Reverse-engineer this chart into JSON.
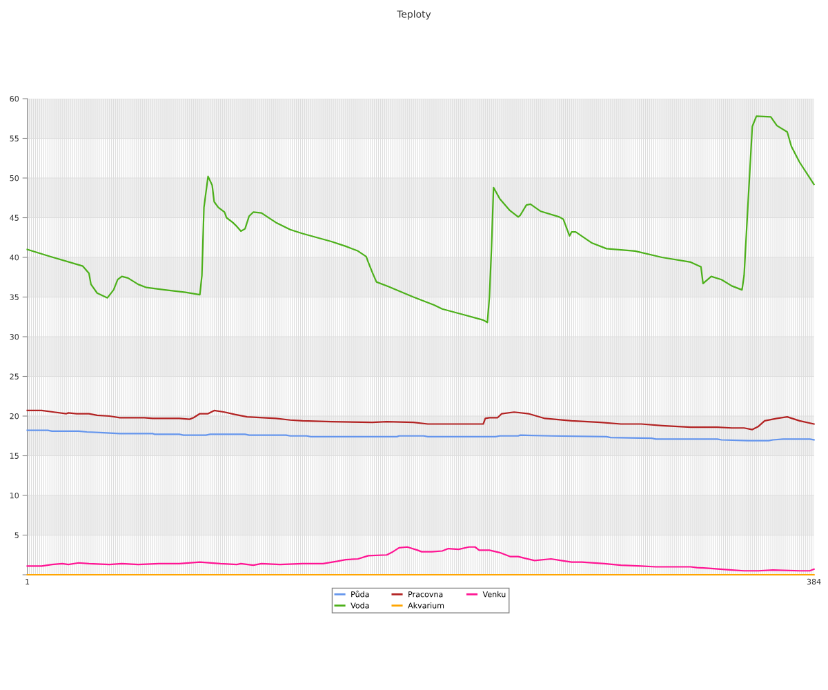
{
  "chart_data": {
    "type": "line",
    "title": "Teploty",
    "xlim": [
      1,
      384
    ],
    "xticks": [
      1,
      {
        "value": 2,
        "label": null
      },
      {
        "value": 3,
        "label": null
      },
      {
        "value": 4,
        "label": null
      },
      {
        "value": 5,
        "label": null
      },
      {
        "value": 6,
        "label": null
      },
      {
        "value": 7,
        "label": null
      },
      {
        "value": 8,
        "label": null
      },
      {
        "value": 9,
        "label": null
      },
      {
        "value": 10,
        "label": null
      },
      {
        "value": 11,
        "label": null
      },
      {
        "value": 12,
        "label": null
      },
      {
        "value": 13,
        "label": null
      },
      {
        "value": 14,
        "label": null
      },
      {
        "value": 15,
        "label": null
      },
      {
        "value": 16,
        "label": null
      },
      {
        "value": 17,
        "label": null
      },
      {
        "value": 18,
        "label": null
      },
      {
        "value": 19,
        "label": null
      },
      {
        "value": 20,
        "label": null
      },
      {
        "value": 21,
        "label": null
      },
      {
        "value": 22,
        "label": null
      },
      {
        "value": 23,
        "label": null
      },
      {
        "value": 24,
        "label": null
      },
      {
        "value": 25,
        "label": null
      },
      {
        "value": 26,
        "label": null
      },
      {
        "value": 27,
        "label": null
      },
      {
        "value": 28,
        "label": null
      },
      {
        "value": 29,
        "label": null
      },
      {
        "value": 30,
        "label": null
      },
      {
        "value": 31,
        "label": null
      },
      {
        "value": 32,
        "label": null
      },
      {
        "value": 33,
        "label": null
      },
      {
        "value": 34,
        "label": null
      },
      {
        "value": 35,
        "label": null
      },
      {
        "value": 36,
        "label": null
      },
      {
        "value": 37,
        "label": null
      },
      {
        "value": 38,
        "label": null
      },
      {
        "value": 39,
        "label": null
      },
      {
        "value": 40,
        "label": null
      },
      {
        "value": 41,
        "label": null
      },
      {
        "value": 42,
        "label": null
      },
      {
        "value": 43,
        "label": null
      },
      {
        "value": 44,
        "label": null
      },
      {
        "value": 45,
        "label": null
      },
      {
        "value": 46,
        "label": null
      },
      {
        "value": 47,
        "label": null
      },
      {
        "value": 48,
        "label": null
      },
      {
        "value": 49,
        "label": null
      },
      {
        "value": 50,
        "label": null
      },
      {
        "value": 51,
        "label": null
      },
      {
        "value": 52,
        "label": null
      },
      {
        "value": 53,
        "label": null
      },
      {
        "value": 54,
        "label": null
      },
      {
        "value": 55,
        "label": null
      },
      {
        "value": 56,
        "label": null
      },
      {
        "value": 57,
        "label": null
      },
      {
        "value": 58,
        "label": null
      },
      {
        "value": 59,
        "label": null
      },
      {
        "value": 60,
        "label": null
      },
      {
        "value": 61,
        "label": null
      },
      {
        "value": 62,
        "label": null
      },
      {
        "value": 63,
        "label": null
      },
      {
        "value": 64,
        "label": null
      },
      {
        "value": 65,
        "label": null
      },
      {
        "value": 66,
        "label": null
      },
      {
        "value": 67,
        "label": null
      },
      {
        "value": 68,
        "label": null
      },
      {
        "value": 69,
        "label": null
      },
      {
        "value": 70,
        "label": null
      },
      {
        "value": 71,
        "label": null
      },
      {
        "value": 72,
        "label": null
      },
      {
        "value": 73,
        "label": null
      },
      {
        "value": 74,
        "label": null
      },
      {
        "value": 75,
        "label": null
      },
      {
        "value": 76,
        "label": null
      },
      {
        "value": 77,
        "label": null
      },
      {
        "value": 78,
        "label": null
      },
      {
        "value": 79,
        "label": null
      },
      {
        "value": 80,
        "label": null
      },
      {
        "value": 81,
        "label": null
      },
      {
        "value": 82,
        "label": null
      },
      {
        "value": 83,
        "label": null
      },
      {
        "value": 84,
        "label": null
      },
      {
        "value": 85,
        "label": null
      },
      {
        "value": 86,
        "label": null
      },
      {
        "value": 87,
        "label": null
      },
      {
        "value": 88,
        "label": null
      },
      {
        "value": 89,
        "label": null
      },
      {
        "value": 90,
        "label": null
      },
      {
        "value": 91,
        "label": null
      },
      {
        "value": 92,
        "label": null
      },
      {
        "value": 93,
        "label": null
      },
      {
        "value": 94,
        "label": null
      },
      {
        "value": 95,
        "label": null
      },
      {
        "value": 96,
        "label": null
      },
      {
        "value": 97,
        "label": null
      },
      {
        "value": 98,
        "label": null
      },
      {
        "value": 99,
        "label": null
      },
      {
        "value": 100,
        "label": null
      },
      {
        "value": 101,
        "label": null
      },
      {
        "value": 102,
        "label": null
      },
      {
        "value": 103,
        "label": null
      },
      {
        "value": 104,
        "label": null
      },
      {
        "value": 105,
        "label": null
      },
      {
        "value": 106,
        "label": null
      },
      {
        "value": 107,
        "label": null
      },
      {
        "value": 108,
        "label": null
      },
      {
        "value": 109,
        "label": null
      },
      {
        "value": 110,
        "label": null
      },
      {
        "value": 111,
        "label": null
      },
      {
        "value": 112,
        "label": null
      },
      {
        "value": 113,
        "label": null
      },
      {
        "value": 114,
        "label": null
      },
      {
        "value": 115,
        "label": null
      },
      {
        "value": 116,
        "label": null
      },
      {
        "value": 117,
        "label": null
      },
      {
        "value": 118,
        "label": null
      },
      {
        "value": 119,
        "label": null
      },
      {
        "value": 120,
        "label": null
      },
      {
        "value": 121,
        "label": null
      },
      {
        "value": 122,
        "label": null
      },
      {
        "value": 123,
        "label": null
      },
      {
        "value": 124,
        "label": null
      },
      {
        "value": 125,
        "label": null
      },
      {
        "value": 126,
        "label": null
      },
      {
        "value": 127,
        "label": null
      },
      {
        "value": 128,
        "label": null
      },
      {
        "value": 129,
        "label": null
      },
      {
        "value": 130,
        "label": null
      },
      {
        "value": 131,
        "label": null
      },
      {
        "value": 132,
        "label": null
      },
      {
        "value": 133,
        "label": null
      },
      {
        "value": 134,
        "label": null
      },
      {
        "value": 135,
        "label": null
      },
      {
        "value": 136,
        "label": null
      },
      {
        "value": 137,
        "label": null
      },
      {
        "value": 138,
        "label": null
      },
      {
        "value": 139,
        "label": null
      },
      {
        "value": 140,
        "label": null
      },
      {
        "value": 141,
        "label": null
      },
      {
        "value": 142,
        "label": null
      },
      {
        "value": 143,
        "label": null
      },
      {
        "value": 144,
        "label": null
      },
      {
        "value": 145,
        "label": null
      },
      {
        "value": 146,
        "label": null
      },
      {
        "value": 147,
        "label": null
      },
      {
        "value": 148,
        "label": null
      },
      {
        "value": 149,
        "label": null
      },
      {
        "value": 150,
        "label": null
      },
      {
        "value": 151,
        "label": null
      },
      {
        "value": 152,
        "label": null
      },
      {
        "value": 153,
        "label": null
      },
      {
        "value": 154,
        "label": null
      },
      {
        "value": 155,
        "label": null
      },
      {
        "value": 156,
        "label": null
      },
      {
        "value": 157,
        "label": null
      },
      {
        "value": 158,
        "label": null
      },
      {
        "value": 159,
        "label": null
      },
      {
        "value": 160,
        "label": null
      },
      {
        "value": 161,
        "label": null
      },
      {
        "value": 162,
        "label": null
      },
      {
        "value": 163,
        "label": null
      },
      {
        "value": 164,
        "label": null
      },
      {
        "value": 165,
        "label": null
      },
      {
        "value": 166,
        "label": null
      },
      {
        "value": 167,
        "label": null
      },
      {
        "value": 168,
        "label": null
      },
      {
        "value": 169,
        "label": null
      },
      {
        "value": 170,
        "label": null
      },
      {
        "value": 171,
        "label": null
      },
      {
        "value": 172,
        "label": null
      },
      {
        "value": 173,
        "label": null
      },
      {
        "value": 174,
        "label": null
      },
      {
        "value": 175,
        "label": null
      },
      {
        "value": 176,
        "label": null
      },
      {
        "value": 177,
        "label": null
      },
      {
        "value": 178,
        "label": null
      },
      {
        "value": 179,
        "label": null
      },
      {
        "value": 180,
        "label": null
      },
      {
        "value": 181,
        "label": null
      },
      {
        "value": 182,
        "label": null
      },
      {
        "value": 183,
        "label": null
      },
      {
        "value": 184,
        "label": null
      },
      {
        "value": 185,
        "label": null
      },
      {
        "value": 186,
        "label": null
      },
      {
        "value": 187,
        "label": null
      },
      {
        "value": 188,
        "label": null
      },
      {
        "value": 189,
        "label": null
      },
      {
        "value": 190,
        "label": null
      },
      {
        "value": 191,
        "label": null
      },
      {
        "value": 192,
        "label": null
      },
      {
        "value": 193,
        "label": null
      },
      {
        "value": 194,
        "label": null
      },
      {
        "value": 195,
        "label": null
      },
      {
        "value": 196,
        "label": null
      },
      {
        "value": 197,
        "label": null
      },
      {
        "value": 198,
        "label": null
      },
      {
        "value": 199,
        "label": null
      },
      {
        "value": 200,
        "label": null
      },
      {
        "value": 201,
        "label": null
      },
      {
        "value": 202,
        "label": null
      },
      {
        "value": 203,
        "label": null
      },
      {
        "value": 204,
        "label": null
      },
      {
        "value": 205,
        "label": null
      },
      {
        "value": 206,
        "label": null
      },
      {
        "value": 207,
        "label": null
      },
      {
        "value": 208,
        "label": null
      },
      {
        "value": 209,
        "label": null
      },
      {
        "value": 210,
        "label": null
      },
      {
        "value": 211,
        "label": null
      },
      {
        "value": 212,
        "label": null
      },
      {
        "value": 213,
        "label": null
      },
      {
        "value": 214,
        "label": null
      },
      {
        "value": 215,
        "label": null
      },
      {
        "value": 216,
        "label": null
      },
      {
        "value": 217,
        "label": null
      },
      {
        "value": 218,
        "label": null
      },
      {
        "value": 219,
        "label": null
      },
      {
        "value": 220,
        "label": null
      },
      {
        "value": 221,
        "label": null
      },
      {
        "value": 222,
        "label": null
      },
      {
        "value": 223,
        "label": null
      },
      {
        "value": 224,
        "label": null
      },
      {
        "value": 225,
        "label": null
      },
      {
        "value": 226,
        "label": null
      },
      {
        "value": 227,
        "label": null
      },
      {
        "value": 228,
        "label": null
      },
      {
        "value": 229,
        "label": null
      },
      {
        "value": 230,
        "label": null
      },
      {
        "value": 231,
        "label": null
      },
      {
        "value": 232,
        "label": null
      },
      {
        "value": 233,
        "label": null
      },
      {
        "value": 234,
        "label": null
      },
      {
        "value": 235,
        "label": null
      },
      {
        "value": 236,
        "label": null
      },
      {
        "value": 237,
        "label": null
      },
      {
        "value": 238,
        "label": null
      },
      {
        "value": 239,
        "label": null
      },
      {
        "value": 240,
        "label": null
      },
      {
        "value": 241,
        "label": null
      },
      {
        "value": 242,
        "label": null
      },
      {
        "value": 243,
        "label": null
      },
      {
        "value": 244,
        "label": null
      },
      {
        "value": 245,
        "label": null
      },
      {
        "value": 246,
        "label": null
      },
      {
        "value": 247,
        "label": null
      },
      {
        "value": 248,
        "label": null
      },
      {
        "value": 249,
        "label": null
      },
      {
        "value": 250,
        "label": null
      },
      {
        "value": 251,
        "label": null
      },
      {
        "value": 252,
        "label": null
      },
      {
        "value": 253,
        "label": null
      },
      {
        "value": 254,
        "label": null
      },
      {
        "value": 255,
        "label": null
      },
      {
        "value": 256,
        "label": null
      },
      {
        "value": 257,
        "label": null
      },
      {
        "value": 258,
        "label": null
      },
      {
        "value": 259,
        "label": null
      },
      {
        "value": 260,
        "label": null
      },
      {
        "value": 261,
        "label": null
      },
      {
        "value": 262,
        "label": null
      },
      {
        "value": 263,
        "label": null
      },
      {
        "value": 264,
        "label": null
      },
      {
        "value": 265,
        "label": null
      },
      {
        "value": 266,
        "label": null
      },
      {
        "value": 267,
        "label": null
      },
      {
        "value": 268,
        "label": null
      },
      {
        "value": 269,
        "label": null
      },
      {
        "value": 270,
        "label": null
      },
      {
        "value": 271,
        "label": null
      },
      {
        "value": 272,
        "label": null
      },
      {
        "value": 273,
        "label": null
      },
      {
        "value": 274,
        "label": null
      },
      {
        "value": 275,
        "label": null
      },
      {
        "value": 276,
        "label": null
      },
      {
        "value": 277,
        "label": null
      },
      {
        "value": 278,
        "label": null
      },
      {
        "value": 279,
        "label": null
      },
      {
        "value": 280,
        "label": null
      },
      {
        "value": 281,
        "label": null
      },
      {
        "value": 282,
        "label": null
      },
      {
        "value": 283,
        "label": null
      },
      {
        "value": 284,
        "label": null
      },
      {
        "value": 285,
        "label": null
      },
      {
        "value": 286,
        "label": null
      },
      {
        "value": 287,
        "label": null
      },
      {
        "value": 288,
        "label": null
      },
      {
        "value": 289,
        "label": null
      },
      {
        "value": 290,
        "label": null
      },
      {
        "value": 291,
        "label": null
      },
      {
        "value": 292,
        "label": null
      },
      {
        "value": 293,
        "label": null
      },
      {
        "value": 294,
        "label": null
      },
      {
        "value": 295,
        "label": null
      },
      {
        "value": 296,
        "label": null
      },
      {
        "value": 297,
        "label": null
      },
      {
        "value": 298,
        "label": null
      },
      {
        "value": 299,
        "label": null
      },
      {
        "value": 300,
        "label": null
      },
      {
        "value": 301,
        "label": null
      },
      {
        "value": 302,
        "label": null
      },
      {
        "value": 303,
        "label": null
      },
      {
        "value": 304,
        "label": null
      },
      {
        "value": 305,
        "label": null
      },
      {
        "value": 306,
        "label": null
      },
      {
        "value": 307,
        "label": null
      },
      {
        "value": 308,
        "label": null
      },
      {
        "value": 309,
        "label": null
      },
      {
        "value": 310,
        "label": null
      },
      {
        "value": 311,
        "label": null
      },
      {
        "value": 312,
        "label": null
      },
      {
        "value": 313,
        "label": null
      },
      {
        "value": 314,
        "label": null
      },
      {
        "value": 315,
        "label": null
      },
      {
        "value": 316,
        "label": null
      },
      {
        "value": 317,
        "label": null
      },
      {
        "value": 318,
        "label": null
      },
      {
        "value": 319,
        "label": null
      },
      {
        "value": 320,
        "label": null
      },
      {
        "value": 321,
        "label": null
      },
      {
        "value": 322,
        "label": null
      },
      {
        "value": 323,
        "label": null
      },
      {
        "value": 324,
        "label": null
      },
      {
        "value": 325,
        "label": null
      },
      {
        "value": 326,
        "label": null
      },
      {
        "value": 327,
        "label": null
      },
      {
        "value": 328,
        "label": null
      },
      {
        "value": 329,
        "label": null
      },
      {
        "value": 330,
        "label": null
      },
      {
        "value": 331,
        "label": null
      },
      {
        "value": 332,
        "label": null
      },
      {
        "value": 333,
        "label": null
      },
      {
        "value": 334,
        "label": null
      },
      {
        "value": 335,
        "label": null
      },
      {
        "value": 336,
        "label": null
      },
      {
        "value": 337,
        "label": null
      },
      {
        "value": 338,
        "label": null
      },
      {
        "value": 339,
        "label": null
      },
      {
        "value": 340,
        "label": null
      },
      {
        "value": 341,
        "label": null
      },
      {
        "value": 342,
        "label": null
      },
      {
        "value": 343,
        "label": null
      },
      {
        "value": 344,
        "label": null
      },
      {
        "value": 345,
        "label": null
      },
      {
        "value": 346,
        "label": null
      },
      {
        "value": 347,
        "label": null
      },
      {
        "value": 348,
        "label": null
      },
      {
        "value": 349,
        "label": null
      },
      {
        "value": 350,
        "label": null
      },
      {
        "value": 351,
        "label": null
      },
      {
        "value": 352,
        "label": null
      },
      {
        "value": 353,
        "label": null
      },
      {
        "value": 354,
        "label": null
      },
      {
        "value": 355,
        "label": null
      },
      {
        "value": 356,
        "label": null
      },
      {
        "value": 357,
        "label": null
      },
      {
        "value": 358,
        "label": null
      },
      {
        "value": 359,
        "label": null
      },
      {
        "value": 360,
        "label": null
      },
      {
        "value": 361,
        "label": null
      },
      {
        "value": 362,
        "label": null
      },
      {
        "value": 363,
        "label": null
      },
      {
        "value": 364,
        "label": null
      },
      {
        "value": 365,
        "label": null
      },
      {
        "value": 366,
        "label": null
      },
      {
        "value": 367,
        "label": null
      },
      {
        "value": 368,
        "label": null
      },
      {
        "value": 369,
        "label": null
      },
      {
        "value": 370,
        "label": null
      },
      {
        "value": 371,
        "label": null
      },
      {
        "value": 372,
        "label": null
      },
      {
        "value": 373,
        "label": null
      },
      {
        "value": 374,
        "label": null
      },
      {
        "value": 375,
        "label": null
      },
      {
        "value": 376,
        "label": null
      },
      {
        "value": 377,
        "label": null
      },
      {
        "value": 378,
        "label": null
      },
      {
        "value": 379,
        "label": null
      },
      {
        "value": 380,
        "label": null
      },
      {
        "value": 381,
        "label": null
      },
      {
        "value": 382,
        "label": null
      },
      {
        "value": 383,
        "label": null
      },
      384
    ],
    "ylim": [
      0,
      60
    ],
    "yticks": [
      {
        "value": 0,
        "label": null
      },
      5,
      10,
      15,
      20,
      25,
      30,
      35,
      40,
      45,
      50,
      55,
      60
    ],
    "grid": true,
    "legend": "bottom",
    "marker": "none",
    "line_style": "solid",
    "bands": [
      {
        "axis": "y",
        "from": 5,
        "to": 10,
        "color": "#f2f2f2"
      },
      {
        "axis": "y",
        "from": 15,
        "to": 20,
        "color": "#f2f2f2"
      },
      {
        "axis": "y",
        "from": 25,
        "to": 30,
        "color": "#f2f2f2"
      },
      {
        "axis": "y",
        "from": 35,
        "to": 40,
        "color": "#f2f2f2"
      },
      {
        "axis": "y",
        "from": 45,
        "to": 50,
        "color": "#f2f2f2"
      },
      {
        "axis": "y",
        "from": 55,
        "to": 60,
        "color": "#f2f2f2"
      }
    ],
    "series": [
      {
        "name": "Půda",
        "color": "#6495ed",
        "x": [
          1,
          11,
          13,
          26,
          30,
          38,
          46,
          62,
          63,
          75,
          77,
          88,
          90,
          107,
          109,
          127,
          129,
          137,
          139,
          152,
          181,
          182,
          194,
          196,
          229,
          231,
          240,
          241,
          256,
          283,
          285,
          305,
          307,
          337,
          339,
          352,
          362,
          364,
          369,
          382,
          384
        ],
        "values": [
          18.2,
          18.2,
          18.1,
          18.1,
          18.0,
          17.9,
          17.8,
          17.8,
          17.7,
          17.7,
          17.6,
          17.6,
          17.7,
          17.7,
          17.6,
          17.6,
          17.5,
          17.5,
          17.4,
          17.4,
          17.4,
          17.5,
          17.5,
          17.4,
          17.4,
          17.5,
          17.5,
          17.6,
          17.5,
          17.4,
          17.3,
          17.2,
          17.1,
          17.1,
          17.0,
          16.9,
          16.9,
          17.0,
          17.1,
          17.1,
          17.0
        ]
      },
      {
        "name": "Voda",
        "color": "#4cb01a",
        "x": [
          1,
          11,
          28,
          31,
          32,
          35,
          40,
          43,
          45,
          47,
          50,
          55,
          59,
          68,
          78,
          85,
          86,
          87,
          89,
          91,
          92,
          94,
          97,
          98,
          101,
          103,
          105,
          107,
          109,
          111,
          115,
          122,
          129,
          135,
          142,
          149,
          156,
          162,
          166,
          167,
          169,
          171,
          177,
          189,
          199,
          203,
          213,
          223,
          225,
          226,
          227,
          228,
          231,
          236,
          240,
          241,
          244,
          246,
          251,
          260,
          262,
          265,
          266,
          268,
          276,
          283,
          297,
          310,
          324,
          329,
          330,
          334,
          339,
          344,
          349,
          350,
          352,
          354,
          356,
          363,
          366,
          371,
          373,
          377,
          384
        ],
        "values": [
          41.0,
          40.2,
          38.9,
          38.0,
          36.6,
          35.5,
          34.9,
          35.9,
          37.2,
          37.6,
          37.4,
          36.6,
          36.2,
          35.9,
          35.6,
          35.3,
          37.7,
          46.3,
          50.2,
          49.1,
          47.0,
          46.3,
          45.7,
          45.0,
          44.4,
          43.9,
          43.3,
          43.6,
          45.2,
          45.7,
          45.6,
          44.4,
          43.5,
          43.0,
          42.5,
          42.0,
          41.4,
          40.8,
          40.1,
          39.4,
          38.1,
          36.9,
          36.3,
          35.0,
          34.0,
          33.5,
          32.8,
          32.1,
          31.8,
          35.0,
          41.1,
          48.8,
          47.4,
          45.9,
          45.1,
          45.3,
          46.6,
          46.7,
          45.8,
          45.1,
          44.8,
          42.7,
          43.2,
          43.2,
          41.8,
          41.1,
          40.8,
          40.0,
          39.4,
          38.8,
          36.7,
          37.6,
          37.2,
          36.4,
          35.9,
          37.7,
          47.2,
          56.5,
          57.8,
          57.7,
          56.6,
          55.8,
          54.0,
          52.0,
          49.2
        ]
      },
      {
        "name": "Pracovna",
        "color": "#b22222",
        "x": [
          1,
          8,
          14,
          20,
          21,
          25,
          31,
          35,
          41,
          46,
          58,
          62,
          75,
          80,
          82,
          85,
          89,
          92,
          97,
          102,
          108,
          122,
          129,
          135,
          149,
          169,
          176,
          189,
          196,
          209,
          223,
          224,
          226,
          230,
          232,
          238,
          245,
          253,
          266,
          280,
          290,
          300,
          310,
          324,
          337,
          344,
          350,
          354,
          357,
          360,
          366,
          371,
          377,
          384
        ],
        "values": [
          20.7,
          20.7,
          20.5,
          20.3,
          20.4,
          20.3,
          20.3,
          20.1,
          20.0,
          19.8,
          19.8,
          19.7,
          19.7,
          19.6,
          19.8,
          20.3,
          20.3,
          20.7,
          20.5,
          20.2,
          19.9,
          19.7,
          19.5,
          19.4,
          19.3,
          19.2,
          19.3,
          19.2,
          19.0,
          19.0,
          19.0,
          19.7,
          19.8,
          19.8,
          20.3,
          20.5,
          20.3,
          19.7,
          19.4,
          19.2,
          19.0,
          19.0,
          18.8,
          18.6,
          18.6,
          18.5,
          18.5,
          18.3,
          18.7,
          19.4,
          19.7,
          19.9,
          19.4,
          19.0
        ]
      },
      {
        "name": "Akvarium",
        "color": "#ffa500",
        "x": [
          1,
          384
        ],
        "values": [
          0,
          0
        ]
      },
      {
        "name": "Venku",
        "color": "#ff1493",
        "x": [
          1,
          8,
          13,
          18,
          21,
          26,
          31,
          41,
          47,
          55,
          65,
          75,
          85,
          95,
          103,
          105,
          111,
          115,
          124,
          135,
          145,
          152,
          156,
          162,
          167,
          176,
          179,
          182,
          186,
          191,
          193,
          198,
          203,
          206,
          211,
          216,
          219,
          221,
          226,
          231,
          236,
          240,
          243,
          248,
          256,
          261,
          266,
          271,
          282,
          290,
          300,
          307,
          310,
          324,
          327,
          334,
          344,
          350,
          357,
          364,
          377,
          382,
          384
        ],
        "values": [
          1.1,
          1.1,
          1.3,
          1.4,
          1.3,
          1.5,
          1.4,
          1.3,
          1.4,
          1.3,
          1.4,
          1.4,
          1.6,
          1.4,
          1.3,
          1.4,
          1.2,
          1.4,
          1.3,
          1.4,
          1.4,
          1.7,
          1.9,
          2.0,
          2.4,
          2.5,
          2.9,
          3.4,
          3.5,
          3.1,
          2.9,
          2.9,
          3.0,
          3.3,
          3.2,
          3.5,
          3.5,
          3.1,
          3.1,
          2.8,
          2.3,
          2.3,
          2.1,
          1.8,
          2.0,
          1.8,
          1.6,
          1.6,
          1.4,
          1.2,
          1.1,
          1.0,
          1.0,
          1.0,
          0.9,
          0.8,
          0.6,
          0.5,
          0.5,
          0.6,
          0.5,
          0.5,
          0.7
        ]
      }
    ]
  }
}
